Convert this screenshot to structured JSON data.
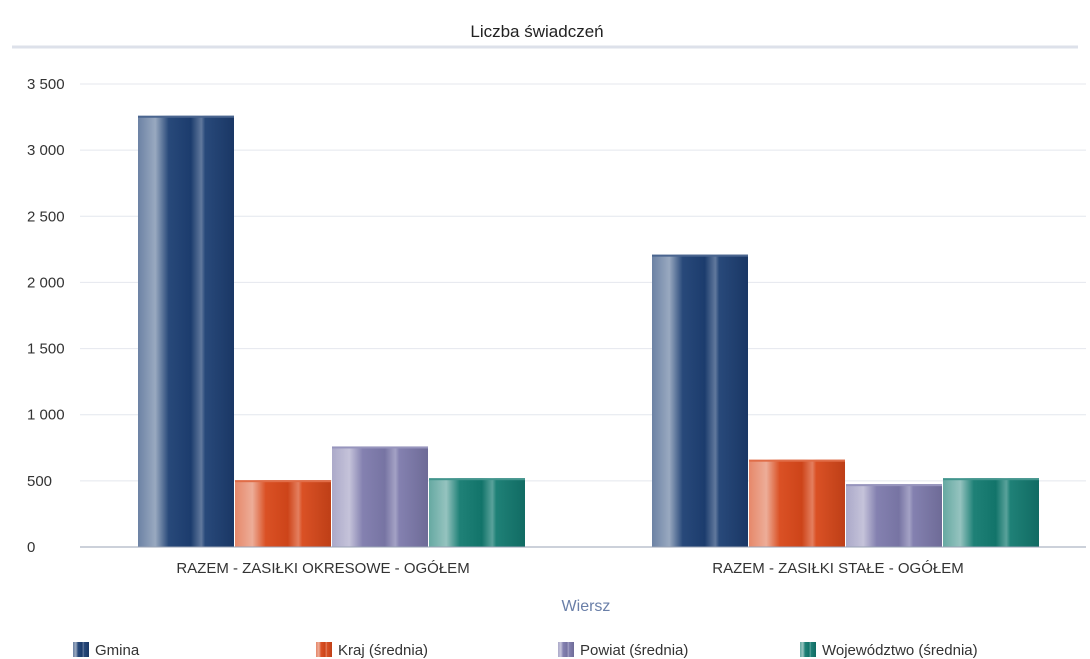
{
  "chart_data": {
    "type": "bar",
    "title": "Liczba świadczeń",
    "xlabel": "Wiersz",
    "ylabel": "",
    "ylim": [
      0,
      3500
    ],
    "yticks": [
      0,
      500,
      1000,
      1500,
      2000,
      2500,
      3000,
      3500
    ],
    "ytick_labels": [
      "0",
      "500",
      "1 000",
      "1 500",
      "2 000",
      "2 500",
      "3 000",
      "3 500"
    ],
    "grid": true,
    "legend_position": "bottom",
    "categories": [
      "RAZEM -  ZASIŁKI OKRESOWE - OGÓŁEM",
      "RAZEM -  ZASIŁKI STAŁE - OGÓŁEM"
    ],
    "series": [
      {
        "name": "Gmina",
        "values": [
          3260,
          2210
        ],
        "color": "#1d3f73"
      },
      {
        "name": "Kraj (średnia)",
        "values": [
          505,
          660
        ],
        "color": "#d8481a"
      },
      {
        "name": "Powiat (średnia)",
        "values": [
          760,
          475
        ],
        "color": "#7d7aac"
      },
      {
        "name": "Województwo (średnia)",
        "values": [
          520,
          520
        ],
        "color": "#137a70"
      }
    ]
  }
}
